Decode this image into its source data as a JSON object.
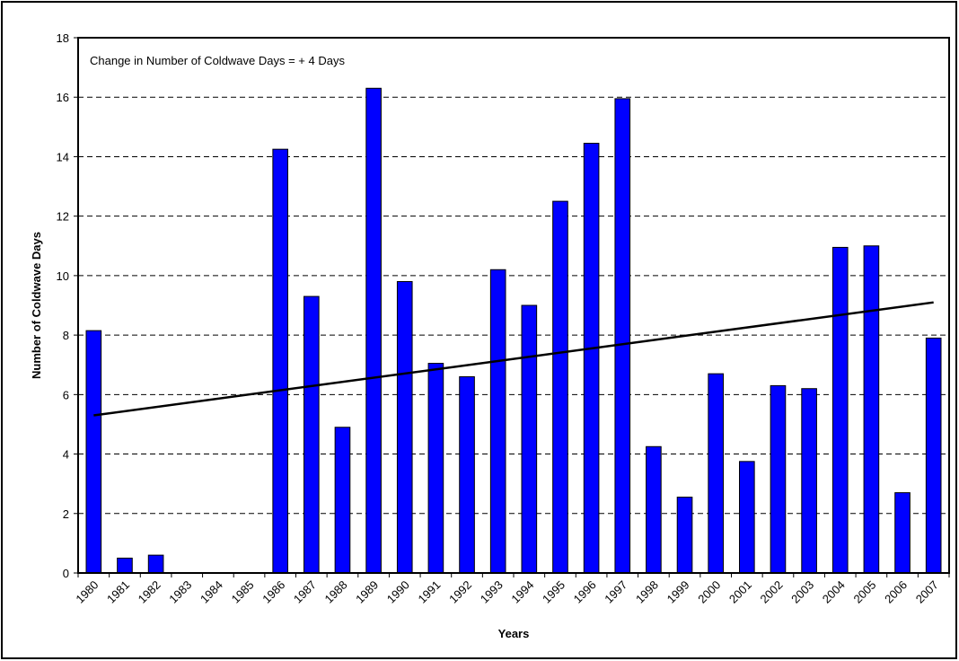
{
  "chart_data": {
    "type": "bar",
    "annotation": "Change in Number of Coldwave Days = + 4 Days",
    "xlabel": "Years",
    "ylabel": "Number of Coldwave Days",
    "categories": [
      "1980",
      "1981",
      "1982",
      "1983",
      "1984",
      "1985",
      "1986",
      "1987",
      "1988",
      "1989",
      "1990",
      "1991",
      "1992",
      "1993",
      "1994",
      "1995",
      "1996",
      "1997",
      "1998",
      "1999",
      "2000",
      "2001",
      "2002",
      "2003",
      "2004",
      "2005",
      "2006",
      "2007"
    ],
    "values": [
      8.15,
      0.5,
      0.6,
      0,
      0,
      0,
      14.25,
      9.3,
      4.9,
      16.3,
      9.8,
      7.05,
      6.6,
      10.2,
      9.0,
      12.5,
      14.45,
      15.95,
      4.25,
      2.55,
      6.7,
      3.75,
      6.3,
      6.2,
      10.95,
      11.0,
      2.7,
      7.9
    ],
    "color": "#0000ff",
    "trend": [
      5.3,
      9.1
    ],
    "ylim": [
      0,
      18
    ],
    "yticks": [
      0,
      2,
      4,
      6,
      8,
      10,
      12,
      14,
      16,
      18
    ],
    "grid": true
  }
}
